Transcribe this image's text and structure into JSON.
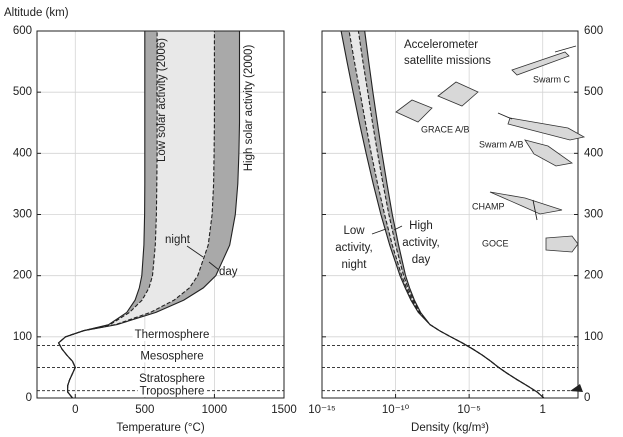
{
  "chart_data": [
    {
      "type": "line",
      "x_label": "Temperature (°C)",
      "y_label": "Altitude (km)",
      "xlim": [
        -275,
        1500
      ],
      "xticks": [
        0,
        500,
        1000,
        1500
      ],
      "ylim": [
        0,
        600
      ],
      "yticks": [
        0,
        100,
        200,
        300,
        400,
        500,
        600
      ],
      "grid": true,
      "altitude": [
        0,
        10,
        20,
        30,
        40,
        50,
        60,
        70,
        80,
        90,
        100,
        110,
        120,
        140,
        160,
        180,
        200,
        250,
        300,
        350,
        400,
        450,
        500,
        550,
        600
      ],
      "profiles": [
        {
          "name": "Low solar activity (2006)",
          "night": [
            -20,
            -55,
            -55,
            -40,
            -20,
            0,
            -20,
            -60,
            -95,
            -120,
            -70,
            60,
            240,
            370,
            430,
            460,
            478,
            493,
            498,
            500,
            500,
            500,
            500,
            500,
            500
          ],
          "day": [
            -20,
            -55,
            -55,
            -40,
            -20,
            0,
            -20,
            -60,
            -95,
            -120,
            -70,
            60,
            250,
            390,
            480,
            530,
            555,
            575,
            583,
            586,
            588,
            588,
            588,
            588,
            588
          ]
        },
        {
          "name": "High solar activity (2000)",
          "night": [
            -20,
            -55,
            -55,
            -40,
            -20,
            0,
            -20,
            -60,
            -95,
            -120,
            -70,
            60,
            290,
            540,
            710,
            820,
            880,
            955,
            983,
            994,
            998,
            1000,
            1000,
            1000,
            1000
          ],
          "day": [
            -20,
            -55,
            -55,
            -40,
            -20,
            0,
            -20,
            -60,
            -95,
            -120,
            -70,
            60,
            300,
            580,
            780,
            920,
            1010,
            1110,
            1150,
            1168,
            1176,
            1180,
            1180,
            1180,
            1180
          ]
        }
      ],
      "night_label": "night",
      "day_label": "day",
      "dashed": [
        false,
        true,
        true,
        false
      ],
      "band_colors": [
        "#a9a9a9",
        "#e8e8e8",
        "#a9a9a9"
      ],
      "line_color": "#222222",
      "layers": [
        {
          "name": "Thermosphere",
          "base": 86
        },
        {
          "name": "Mesosphere",
          "base": 50
        },
        {
          "name": "Stratosphere",
          "base": 12
        },
        {
          "name": "Troposphere",
          "base": 0
        }
      ]
    },
    {
      "type": "line",
      "x_label": "Density (kg/m³)",
      "log_x": true,
      "xlim": [
        1e-15,
        250
      ],
      "xticks": [
        {
          "value": 1e-15,
          "label": "10⁻¹⁵"
        },
        {
          "value": 1e-10,
          "label": "10⁻¹⁰"
        },
        {
          "value": 1e-05,
          "label": "10⁻⁵"
        },
        1
      ],
      "ylim": [
        0,
        600
      ],
      "yticks": [
        0,
        100,
        200,
        300,
        400,
        500,
        600
      ],
      "grid": true,
      "altitude": [
        0,
        10,
        20,
        30,
        40,
        50,
        60,
        70,
        80,
        90,
        100,
        110,
        120,
        140,
        160,
        180,
        200,
        250,
        300,
        350,
        400,
        450,
        500,
        550,
        600
      ],
      "profiles": [
        {
          "night": [
            1.2,
            0.41,
            0.089,
            0.018,
            0.004,
            0.001,
            0.0003,
            8e-05,
            1.8e-05,
            3.4e-06,
            5.6e-07,
            9.7e-08,
            2.2e-08,
            3.5e-09,
            1.1e-09,
            4.5e-10,
            2e-10,
            4e-11,
            1e-11,
            3e-12,
            1e-12,
            3.5e-13,
            1.3e-13,
            5e-14,
            2e-14
          ],
          "day": [
            1.2,
            0.41,
            0.089,
            0.018,
            0.004,
            0.001,
            0.0003,
            8e-05,
            1.8e-05,
            3.4e-06,
            5.6e-07,
            9.7e-08,
            2.2e-08,
            4e-09,
            1.3e-09,
            5.5e-10,
            2.6e-10,
            6e-11,
            1.8e-11,
            6e-12,
            2.2e-12,
            9e-13,
            3.8e-13,
            1.6e-13,
            7e-14
          ]
        },
        {
          "night": [
            1.2,
            0.41,
            0.089,
            0.018,
            0.004,
            0.001,
            0.0003,
            8e-05,
            1.8e-05,
            3.4e-06,
            5.6e-07,
            9.7e-08,
            2.2e-08,
            4.5e-09,
            1.6e-09,
            7e-10,
            3.5e-10,
            1e-10,
            3.5e-11,
            1.4e-11,
            6e-12,
            2.7e-12,
            1.3e-12,
            6e-13,
            3e-13
          ],
          "day": [
            1.2,
            0.41,
            0.089,
            0.018,
            0.004,
            0.001,
            0.0003,
            8e-05,
            1.8e-05,
            3.4e-06,
            5.6e-07,
            9.7e-08,
            2.2e-08,
            5e-09,
            1.9e-09,
            9e-10,
            4.8e-10,
            1.6e-10,
            6e-11,
            2.6e-11,
            1.2e-11,
            5.8e-12,
            2.9e-12,
            1.5e-12,
            8e-13
          ]
        }
      ],
      "dashed": [
        false,
        true,
        true,
        false
      ],
      "band_colors": [
        "#a9a9a9",
        "#e8e8e8",
        "#a9a9a9"
      ],
      "line_color": "#222222",
      "low_label": [
        "Low",
        "activity,",
        "night"
      ],
      "high_label": [
        "High",
        "activity,",
        "day"
      ],
      "inset": {
        "title": [
          "Accelerometer",
          "satellite missions"
        ],
        "satellites": [
          "Swarm C",
          "GRACE A/B",
          "Swarm A/B",
          "CHAMP",
          "GOCE"
        ]
      }
    }
  ]
}
